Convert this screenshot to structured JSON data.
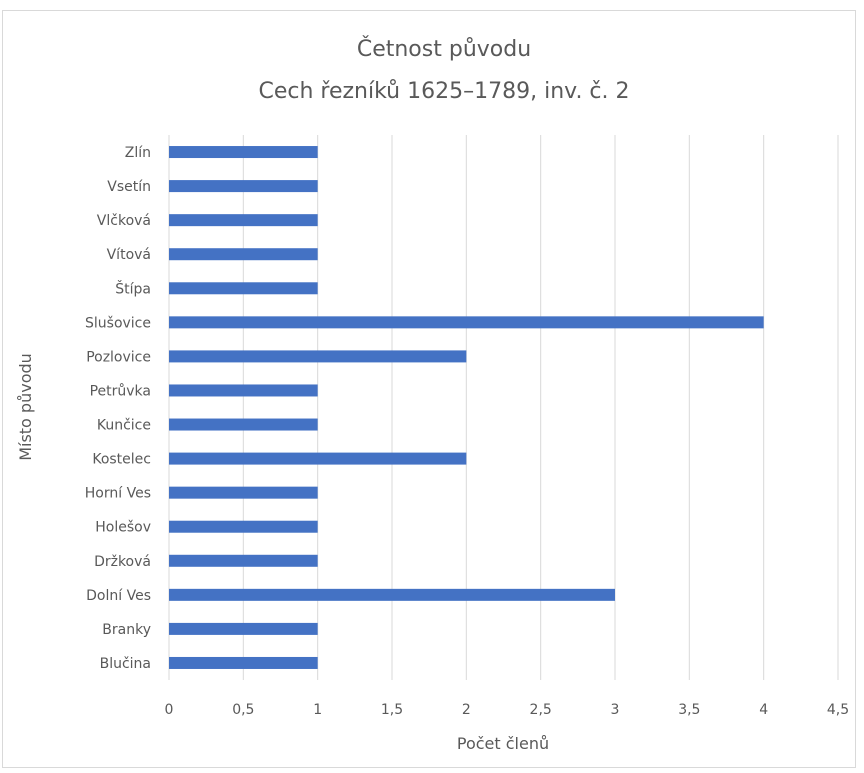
{
  "chart_data": {
    "type": "bar",
    "orientation": "horizontal",
    "title": "Četnost původu",
    "subtitle": "Cech řezníků 1625–1789, inv. č. 2",
    "xlabel": "Počet členů",
    "ylabel": "Místo původu",
    "xlim": [
      0,
      4.5
    ],
    "xticks": [
      "0",
      "0,5",
      "1",
      "1,5",
      "2",
      "2,5",
      "3",
      "3,5",
      "4",
      "4,5"
    ],
    "grid": "vertical",
    "legend": "none",
    "bar_color": "#4472c4",
    "grid_color": "#d9d9d9",
    "categories": [
      "Zlín",
      "Vsetín",
      "Vlčková",
      "Vítová",
      "Štípa",
      "Slušovice",
      "Pozlovice",
      "Petrůvka",
      "Kunčice",
      "Kostelec",
      "Horní Ves",
      "Holešov",
      "Držková",
      "Dolní Ves",
      "Branky",
      "Blučina"
    ],
    "values": [
      1,
      1,
      1,
      1,
      1,
      4,
      2,
      1,
      1,
      2,
      1,
      1,
      1,
      3,
      1,
      1
    ]
  }
}
